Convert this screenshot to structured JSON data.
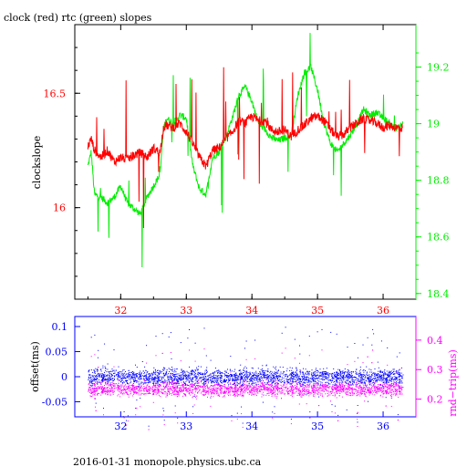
{
  "figure": {
    "title": "clock (red) rtc (green) slopes",
    "footer": "2016-01-31 monopole.physics.ubc.ca"
  },
  "colors": {
    "clock": "#ff0000",
    "rtc": "#00ee00",
    "offset": "#0000ff",
    "roundtrip": "#ff00ff",
    "frame": "#000000"
  },
  "chart_data": [
    {
      "type": "line",
      "title": "clock (red) rtc (green) slopes",
      "xlabel": "",
      "ylabel": "clockslope",
      "y2label": "",
      "xlim": [
        31.3,
        36.5
      ],
      "ylim": [
        15.6,
        16.8
      ],
      "y2lim": [
        18.38,
        19.35
      ],
      "x_ticks": [
        "32",
        "33",
        "34",
        "35",
        "36"
      ],
      "y_ticks": [
        "16",
        "16.5"
      ],
      "y2_ticks": [
        "18.4",
        "18.6",
        "18.8",
        "19",
        "19.2"
      ],
      "series": [
        {
          "name": "clock (red)",
          "axis": "left",
          "x": [
            31.5,
            31.55,
            31.6,
            31.7,
            31.8,
            31.9,
            32.0,
            32.1,
            32.2,
            32.3,
            32.4,
            32.5,
            32.6,
            32.65,
            32.7,
            32.8,
            32.9,
            33.0,
            33.1,
            33.2,
            33.3,
            33.4,
            33.5,
            33.6,
            33.7,
            33.8,
            33.9,
            34.0,
            34.1,
            34.2,
            34.3,
            34.4,
            34.5,
            34.6,
            34.7,
            34.8,
            34.9,
            35.0,
            35.1,
            35.2,
            35.3,
            35.4,
            35.5,
            35.6,
            35.7,
            35.8,
            35.9,
            36.0,
            36.1,
            36.2,
            36.3
          ],
          "values": [
            16.27,
            16.3,
            16.25,
            16.22,
            16.25,
            16.2,
            16.22,
            16.21,
            16.23,
            16.24,
            16.22,
            16.26,
            16.24,
            16.35,
            16.36,
            16.35,
            16.37,
            16.33,
            16.28,
            16.22,
            16.18,
            16.25,
            16.26,
            16.3,
            16.33,
            16.38,
            16.37,
            16.4,
            16.38,
            16.38,
            16.34,
            16.33,
            16.34,
            16.31,
            16.34,
            16.36,
            16.39,
            16.4,
            16.38,
            16.34,
            16.31,
            16.32,
            16.35,
            16.37,
            16.39,
            16.38,
            16.37,
            16.35,
            16.36,
            16.35,
            16.35
          ]
        },
        {
          "name": "rtc (green)",
          "axis": "right",
          "x": [
            31.5,
            31.55,
            31.6,
            31.7,
            31.8,
            31.9,
            32.0,
            32.1,
            32.2,
            32.3,
            32.4,
            32.5,
            32.6,
            32.65,
            32.7,
            32.8,
            32.9,
            33.0,
            33.1,
            33.2,
            33.3,
            33.4,
            33.5,
            33.6,
            33.7,
            33.8,
            33.9,
            34.0,
            34.1,
            34.2,
            34.3,
            34.4,
            34.5,
            34.6,
            34.7,
            34.8,
            34.9,
            35.0,
            35.1,
            35.2,
            35.3,
            35.4,
            35.5,
            35.6,
            35.7,
            35.8,
            35.9,
            36.0,
            36.1,
            36.2,
            36.3
          ],
          "values": [
            18.85,
            18.9,
            18.75,
            18.74,
            18.72,
            18.74,
            18.78,
            18.72,
            18.7,
            18.68,
            18.74,
            18.78,
            18.82,
            18.98,
            19.02,
            19.0,
            19.03,
            19.02,
            18.85,
            18.77,
            18.75,
            18.88,
            18.9,
            18.95,
            19.02,
            19.1,
            19.13,
            19.08,
            19.0,
            18.98,
            18.95,
            18.94,
            18.95,
            18.96,
            19.1,
            19.18,
            19.2,
            19.12,
            19.0,
            18.93,
            18.9,
            18.93,
            18.96,
            19.0,
            19.05,
            19.03,
            19.04,
            19.02,
            19.0,
            18.98,
            19.0
          ]
        }
      ]
    },
    {
      "type": "scatter",
      "xlabel": "",
      "ylabel": "offset(ms)",
      "y2label": "rnd−trip(ms)",
      "xlim": [
        31.3,
        36.5
      ],
      "ylim": [
        -0.08,
        0.12
      ],
      "y2lim": [
        0.14,
        0.48
      ],
      "x_ticks": [
        "32",
        "33",
        "34",
        "35",
        "36"
      ],
      "y_ticks": [
        "-0.05",
        "0",
        "0.05",
        "0.1"
      ],
      "y2_ticks": [
        "0.2",
        "0.3",
        "0.4"
      ],
      "series": [
        {
          "name": "offset(ms)",
          "axis": "left",
          "x_range": [
            31.5,
            36.3
          ],
          "center": 0.0,
          "band": [
            -0.025,
            0.025
          ]
        },
        {
          "name": "rnd−trip(ms)",
          "axis": "right",
          "x_range": [
            31.5,
            36.3
          ],
          "center": 0.235,
          "band": [
            0.2,
            0.27
          ]
        }
      ]
    }
  ]
}
